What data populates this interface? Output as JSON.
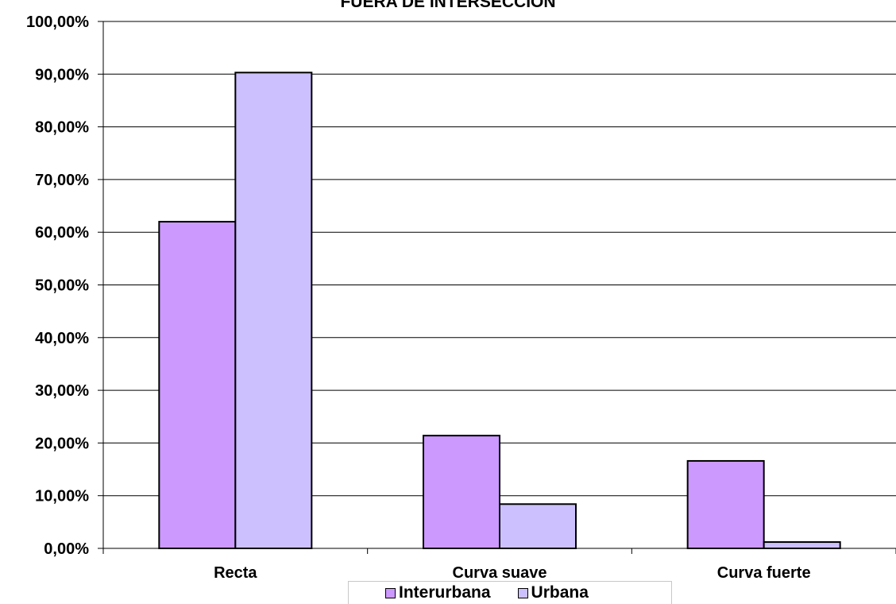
{
  "chart_data": {
    "type": "bar",
    "title": "FUERA DE INTERSECCIÓN",
    "categories": [
      "Recta",
      "Curva suave",
      "Curva fuerte"
    ],
    "series": [
      {
        "name": "Interurbana",
        "values": [
          62.0,
          21.4,
          16.6
        ],
        "color": "#cc99ff"
      },
      {
        "name": "Urbana",
        "values": [
          90.3,
          8.4,
          1.2
        ],
        "color": "#ccc0ff"
      }
    ],
    "ylim": [
      0,
      100
    ],
    "y_ticks": [
      0,
      10,
      20,
      30,
      40,
      50,
      60,
      70,
      80,
      90,
      100
    ],
    "y_tick_labels": [
      "0,00%",
      "10,00%",
      "20,00%",
      "30,00%",
      "40,00%",
      "50,00%",
      "60,00%",
      "70,00%",
      "80,00%",
      "90,00%",
      "100,00%"
    ],
    "grid": true,
    "legend": "bottom"
  }
}
